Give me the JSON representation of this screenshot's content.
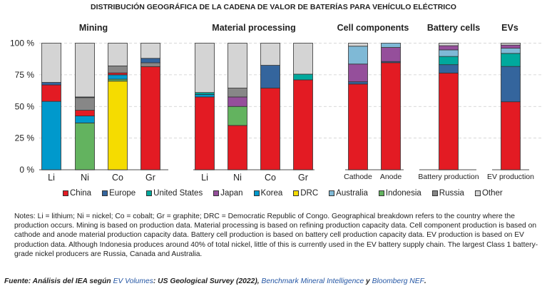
{
  "chart_data": {
    "type": "bar",
    "stacked": true,
    "title": "DISTRIBUCIÓN GEOGRÁFICA DE LA CADENA DE VALOR DE BATERÍAS PARA VEHÍCULO ELÉCTRICO",
    "ylim": [
      0,
      100
    ],
    "yticks": [
      "0 %",
      "25 %",
      "50 %",
      "75 %",
      "100 %"
    ],
    "colors": {
      "China": "#e31b23",
      "Europe": "#34659d",
      "United States": "#00a99d",
      "Japan": "#954f9b",
      "Korea": "#0099cc",
      "DRC": "#f5dc00",
      "Australia": "#7fb9d6",
      "Indonesia": "#63b35f",
      "Russia": "#878787",
      "Other": "#d4d4d4"
    },
    "legend": [
      "China",
      "Europe",
      "United States",
      "Japan",
      "Korea",
      "DRC",
      "Australia",
      "Indonesia",
      "Russia",
      "Other"
    ],
    "groups": [
      {
        "title": "Mining",
        "bars": [
          {
            "label": "Li",
            "segments": [
              [
                "Korea",
                54
              ],
              [
                "China",
                13
              ],
              [
                "Europe",
                2
              ],
              [
                "Other",
                31
              ]
            ]
          },
          {
            "label": "Ni",
            "segments": [
              [
                "Indonesia",
                37
              ],
              [
                "Korea",
                5.5
              ],
              [
                "China",
                4.5
              ],
              [
                "Russia",
                10
              ],
              [
                "Europe",
                0.5
              ],
              [
                "Other",
                42.5
              ]
            ]
          },
          {
            "label": "Co",
            "segments": [
              [
                "DRC",
                70
              ],
              [
                "Indonesia",
                1.5
              ],
              [
                "Korea",
                3.5
              ],
              [
                "China",
                1.5
              ],
              [
                "Russia",
                5.5
              ],
              [
                "Other",
                18
              ]
            ]
          },
          {
            "label": "Gr",
            "segments": [
              [
                "China",
                81.5
              ],
              [
                "Russia",
                3
              ],
              [
                "Europe",
                3.5
              ],
              [
                "Other",
                12
              ]
            ]
          }
        ]
      },
      {
        "title": "Material processing",
        "bars": [
          {
            "label": "Li",
            "segments": [
              [
                "China",
                57.5
              ],
              [
                "Korea",
                2
              ],
              [
                "United States",
                1.5
              ],
              [
                "Other",
                39
              ]
            ]
          },
          {
            "label": "Ni",
            "segments": [
              [
                "China",
                35
              ],
              [
                "Indonesia",
                15
              ],
              [
                "Japan",
                7.5
              ],
              [
                "Russia",
                7
              ],
              [
                "Other",
                35.5
              ]
            ]
          },
          {
            "label": "Co",
            "segments": [
              [
                "China",
                64.5
              ],
              [
                "Europe",
                18
              ],
              [
                "Other",
                17.5
              ]
            ]
          },
          {
            "label": "Gr",
            "segments": [
              [
                "China",
                71
              ],
              [
                "United States",
                4.5
              ],
              [
                "Other",
                24.5
              ]
            ]
          }
        ]
      },
      {
        "title": "Cell components",
        "bars": [
          {
            "label": "Cathode",
            "segments": [
              [
                "China",
                67.7
              ],
              [
                "Europe",
                1.8
              ],
              [
                "Japan",
                14
              ],
              [
                "Australia",
                14.1
              ],
              [
                "Other",
                2.4
              ]
            ]
          },
          {
            "label": "Anode",
            "segments": [
              [
                "China",
                84.6
              ],
              [
                "Europe",
                0.9
              ],
              [
                "Japan",
                11.1
              ],
              [
                "Australia",
                3.4
              ]
            ]
          }
        ]
      },
      {
        "title": "Battery cells",
        "bars": [
          {
            "label": "Battery production",
            "segments": [
              [
                "China",
                76.4
              ],
              [
                "Europe",
                6.6
              ],
              [
                "United States",
                6.5
              ],
              [
                "Australia",
                5.2
              ],
              [
                "Japan",
                3.3
              ],
              [
                "Other",
                2
              ]
            ]
          }
        ]
      },
      {
        "title": "EVs",
        "bars": [
          {
            "label": "EV production",
            "segments": [
              [
                "China",
                53.7
              ],
              [
                "Europe",
                27.9
              ],
              [
                "United States",
                10.3
              ],
              [
                "Australia",
                4.1
              ],
              [
                "Japan",
                2.5
              ],
              [
                "Other",
                1.5
              ]
            ]
          }
        ]
      }
    ]
  },
  "notes": "Notes: Li = lithium; Ni = nickel; Co = cobalt; Gr = graphite; DRC = Democratic Republic of Congo. Geographical breakdown refers to the country where the production occurs. Mining is based on production data. Material processing is based on refining production capacity data. Cell component production is based on cathode and anode material production capacity data. Battery cell production is based on battery cell production capacity data. EV production is based on EV production data. Although Indonesia produces around 40% of total nickel, little of this is currently used in the EV battery supply chain. The largest Class 1 battery-grade nickel producers are Russia, Canada and Australia.",
  "source": {
    "prefix": "Fuente: Análisis del IEA según ",
    "link1": "EV Volumes",
    "mid1": ": US Geological Survey (2022), ",
    "link2": "Benchmark Mineral Intelligence",
    "mid2": " y ",
    "link3": "Bloomberg NEF",
    "end": "."
  }
}
